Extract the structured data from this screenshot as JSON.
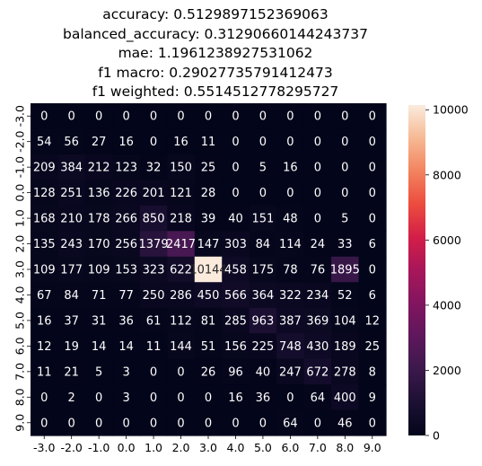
{
  "chart_data": {
    "type": "heatmap",
    "title_lines": [
      "accuracy: 0.5129897152369063",
      "balanced_accuracy: 0.31290660144243737",
      "mae: 1.1961238927531062",
      "f1 macro: 0.29027735791412473",
      "f1 weighted: 0.5514512778295727"
    ],
    "x_labels": [
      "-3.0",
      "-2.0",
      "-1.0",
      "0.0",
      "1.0",
      "2.0",
      "3.0",
      "4.0",
      "5.0",
      "6.0",
      "7.0",
      "8.0",
      "9.0"
    ],
    "y_labels": [
      "-3.0",
      "-2.0",
      "-1.0",
      "0.0",
      "1.0",
      "2.0",
      "3.0",
      "4.0",
      "5.0",
      "6.0",
      "7.0",
      "8.0",
      "9.0"
    ],
    "values": [
      [
        0,
        0,
        0,
        0,
        0,
        0,
        0,
        0,
        0,
        0,
        0,
        0,
        0
      ],
      [
        54,
        56,
        27,
        16,
        0,
        16,
        11,
        0,
        0,
        0,
        0,
        0,
        0
      ],
      [
        209,
        384,
        212,
        123,
        32,
        150,
        25,
        0,
        5,
        16,
        0,
        0,
        0
      ],
      [
        128,
        251,
        136,
        226,
        201,
        121,
        28,
        0,
        0,
        0,
        0,
        0,
        0
      ],
      [
        168,
        210,
        178,
        266,
        850,
        218,
        39,
        40,
        151,
        48,
        0,
        5,
        0
      ],
      [
        135,
        243,
        170,
        256,
        1379,
        2417,
        147,
        303,
        84,
        114,
        24,
        33,
        6
      ],
      [
        109,
        177,
        109,
        153,
        323,
        622,
        10144,
        458,
        175,
        78,
        76,
        1895,
        0
      ],
      [
        67,
        84,
        71,
        77,
        250,
        286,
        450,
        566,
        364,
        322,
        234,
        52,
        6
      ],
      [
        16,
        37,
        31,
        36,
        61,
        112,
        81,
        285,
        963,
        387,
        369,
        104,
        12
      ],
      [
        12,
        19,
        14,
        14,
        11,
        144,
        51,
        156,
        225,
        748,
        430,
        189,
        25
      ],
      [
        11,
        21,
        5,
        3,
        0,
        0,
        26,
        96,
        40,
        247,
        672,
        278,
        8
      ],
      [
        0,
        2,
        0,
        3,
        0,
        0,
        0,
        16,
        36,
        0,
        64,
        400,
        9
      ],
      [
        0,
        0,
        0,
        0,
        0,
        0,
        0,
        0,
        0,
        64,
        0,
        46,
        0
      ]
    ],
    "vmin": 0,
    "vmax": 10144,
    "colorbar_ticks": [
      0,
      2000,
      4000,
      6000,
      8000,
      10000
    ],
    "colormap": "rocket"
  }
}
